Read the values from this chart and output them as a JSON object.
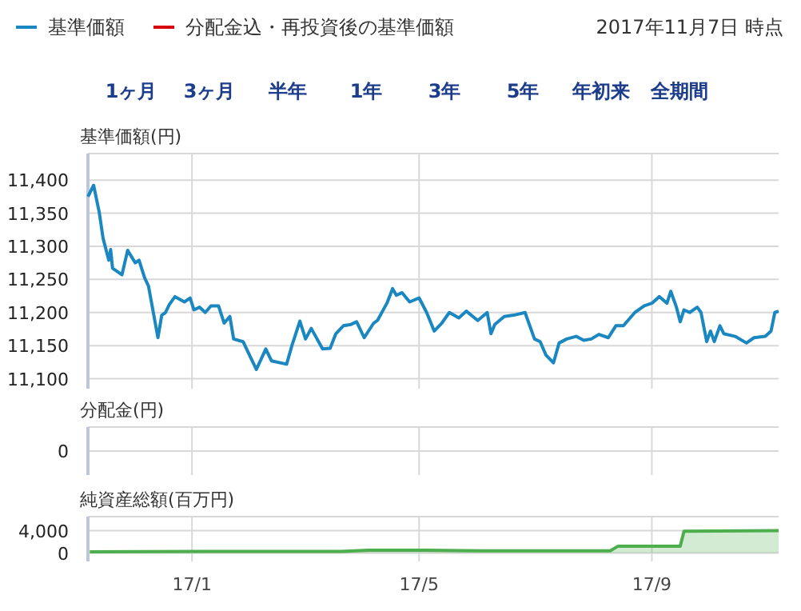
{
  "chart_data": [
    {
      "type": "line",
      "subtitle": "2017年11月7日 時点",
      "ylabel": "基準価額(円)",
      "annotations": [
        "1ヶ月",
        "3ヶ月",
        "半年",
        "1年",
        "3年",
        "5年",
        "年初来",
        "全期間"
      ],
      "legend": "top left",
      "grid": true,
      "tick_labels": "y",
      "xlim": [
        "2016-11-07",
        "2017-11-07"
      ],
      "xticks": [
        {
          "value": "2017-01-01",
          "label": null
        },
        {
          "value": "2017-05-01",
          "label": null
        },
        {
          "value": "2017-09-01",
          "label": null
        }
      ],
      "ylim": [
        11085,
        11440
      ],
      "yticks": [
        {
          "value": 11100,
          "label": "11,100"
        },
        {
          "value": 11150,
          "label": "11,150"
        },
        {
          "value": 11200,
          "label": "11,200"
        },
        {
          "value": 11250,
          "label": "11,250"
        },
        {
          "value": 11300,
          "label": "11,300"
        },
        {
          "value": 11350,
          "label": "11,350"
        },
        {
          "value": 11400,
          "label": "11,400"
        }
      ],
      "series": [
        {
          "name": "基準価額",
          "color": "#1a87c0",
          "x": [
            "2016-11-07",
            "2016-11-10",
            "2016-11-13",
            "2016-11-15",
            "2016-11-18",
            "2016-11-19",
            "2016-11-20",
            "2016-11-25",
            "2016-11-28",
            "2016-12-02",
            "2016-12-04",
            "2016-12-07",
            "2016-12-09",
            "2016-12-14",
            "2016-12-16",
            "2016-12-18",
            "2016-12-20",
            "2016-12-23",
            "2016-12-28",
            "2016-12-31",
            "2017-01-02",
            "2017-01-05",
            "2017-01-08",
            "2017-01-11",
            "2017-01-15",
            "2017-01-18",
            "2017-01-21",
            "2017-01-23",
            "2017-01-28",
            "2017-02-01",
            "2017-02-04",
            "2017-02-09",
            "2017-02-12",
            "2017-02-20",
            "2017-02-23",
            "2017-02-27",
            "2017-03-02",
            "2017-03-05",
            "2017-03-11",
            "2017-03-15",
            "2017-03-18",
            "2017-03-22",
            "2017-03-26",
            "2017-03-29",
            "2017-04-02",
            "2017-04-07",
            "2017-04-09",
            "2017-04-14",
            "2017-04-17",
            "2017-04-19",
            "2017-04-22",
            "2017-04-26",
            "2017-05-01",
            "2017-05-05",
            "2017-05-09",
            "2017-05-13",
            "2017-05-17",
            "2017-05-22",
            "2017-05-26",
            "2017-06-01",
            "2017-06-06",
            "2017-06-08",
            "2017-06-10",
            "2017-06-15",
            "2017-06-20",
            "2017-06-26",
            "2017-07-01",
            "2017-07-04",
            "2017-07-07",
            "2017-07-11",
            "2017-07-14",
            "2017-07-18",
            "2017-07-23",
            "2017-07-27",
            "2017-07-31",
            "2017-08-04",
            "2017-08-09",
            "2017-08-13",
            "2017-08-17",
            "2017-08-23",
            "2017-08-28",
            "2017-09-01",
            "2017-09-05",
            "2017-09-09",
            "2017-09-11",
            "2017-09-14",
            "2017-09-16",
            "2017-09-18",
            "2017-09-21",
            "2017-09-25",
            "2017-09-27",
            "2017-09-30",
            "2017-10-02",
            "2017-10-04",
            "2017-10-07",
            "2017-10-09",
            "2017-10-15",
            "2017-10-21",
            "2017-10-25",
            "2017-10-31",
            "2017-11-03",
            "2017-11-05",
            "2017-11-07"
          ],
          "values": [
            11375,
            11392,
            11351,
            11312,
            11279,
            11295,
            11267,
            11257,
            11294,
            11275,
            11279,
            11252,
            11240,
            11162,
            11196,
            11200,
            11212,
            11224,
            11216,
            11222,
            11204,
            11208,
            11200,
            11210,
            11210,
            11184,
            11194,
            11160,
            11156,
            11132,
            11114,
            11145,
            11127,
            11122,
            11152,
            11187,
            11160,
            11176,
            11145,
            11146,
            11168,
            11180,
            11182,
            11186,
            11162,
            11184,
            11188,
            11214,
            11236,
            11226,
            11230,
            11216,
            11222,
            11200,
            11172,
            11184,
            11200,
            11192,
            11202,
            11188,
            11200,
            11168,
            11182,
            11194,
            11196,
            11200,
            11160,
            11156,
            11136,
            11124,
            11154,
            11160,
            11164,
            11158,
            11160,
            11167,
            11162,
            11180,
            11180,
            11200,
            11210,
            11214,
            11224,
            11214,
            11232,
            11208,
            11186,
            11204,
            11200,
            11208,
            11200,
            11156,
            11172,
            11156,
            11180,
            11168,
            11164,
            11154,
            11162,
            11164,
            11172,
            11200,
            11202
          ]
        },
        {
          "name": "分配金込・再投資後の基準価額",
          "color": "#d7000f"
        }
      ]
    },
    {
      "type": "other",
      "ylabel": "分配金(円)",
      "annotations": [
        "0"
      ]
    },
    {
      "type": "area",
      "ylabel": "純資産総額(百万円)",
      "grid": true,
      "color": "#4cae4c",
      "xlim": [
        "2016-11-07",
        "2017-11-07"
      ],
      "xticks": [
        {
          "value": "2017-01-01",
          "label": "17/1"
        },
        {
          "value": "2017-05-01",
          "label": "17/5"
        },
        {
          "value": "2017-09-01",
          "label": "17/9"
        }
      ],
      "ylim": [
        -1500,
        6500
      ],
      "yticks": [
        0,
        {
          "value": 4000,
          "label": "4,000"
        }
      ],
      "x": [
        "2016-11-08",
        "2017-01-07",
        "2017-03-21",
        "2017-04-04",
        "2017-05-05",
        "2017-06-02",
        "2017-08-10",
        "2017-08-14",
        "2017-09-16",
        "2017-09-18",
        "2017-11-07"
      ],
      "values": [
        200,
        300,
        300,
        500,
        500,
        400,
        400,
        1200,
        1200,
        3900,
        4000
      ]
    }
  ]
}
